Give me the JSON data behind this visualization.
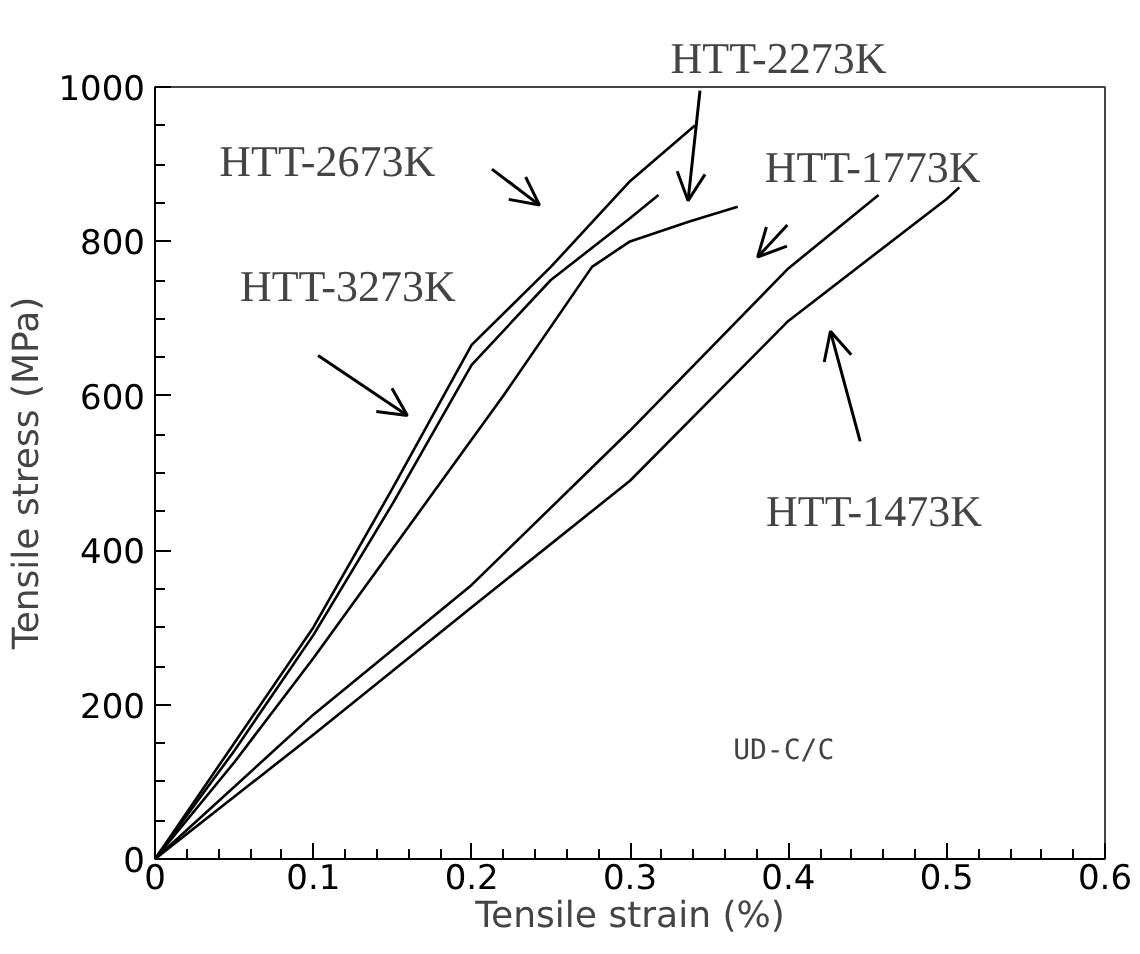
{
  "chart_data": {
    "type": "line",
    "xlabel": "Tensile strain (%)",
    "ylabel": "Tensile stress (MPa)",
    "xlim": [
      0,
      0.6
    ],
    "ylim": [
      0,
      1000
    ],
    "xticks": [
      0,
      0.1,
      0.2,
      0.3,
      0.4,
      0.5,
      0.6
    ],
    "yticks": [
      0,
      200,
      400,
      600,
      800,
      1000
    ],
    "grid": false,
    "line_style": "solid",
    "annotations": [
      "UD-C/C"
    ],
    "series": [
      {
        "name": "HTT-3273K",
        "color": "#000000",
        "x": [
          0,
          0.05,
          0.1,
          0.15,
          0.2,
          0.25,
          0.3,
          0.341
        ],
        "values": [
          0,
          150,
          300,
          480,
          666,
          767,
          878,
          950
        ]
      },
      {
        "name": "HTT-2673K",
        "color": "#000000",
        "x": [
          0,
          0.05,
          0.1,
          0.15,
          0.2,
          0.25,
          0.3,
          0.318
        ],
        "values": [
          0,
          140,
          290,
          460,
          640,
          750,
          830,
          860
        ]
      },
      {
        "name": "HTT-2273K",
        "color": "#000000",
        "x": [
          0,
          0.05,
          0.1,
          0.172,
          0.22,
          0.276,
          0.3,
          0.338,
          0.368
        ],
        "values": [
          0,
          125,
          260,
          464,
          600,
          767,
          800,
          826,
          845
        ]
      },
      {
        "name": "HTT-1773K",
        "color": "#000000",
        "x": [
          0,
          0.1,
          0.2,
          0.3,
          0.4,
          0.457
        ],
        "values": [
          0,
          187,
          355,
          555,
          765,
          860
        ]
      },
      {
        "name": "HTT-1473K",
        "color": "#000000",
        "x": [
          0,
          0.1,
          0.2,
          0.3,
          0.4,
          0.5,
          0.508
        ],
        "values": [
          0,
          161,
          326,
          490,
          697,
          855,
          870
        ]
      }
    ]
  }
}
